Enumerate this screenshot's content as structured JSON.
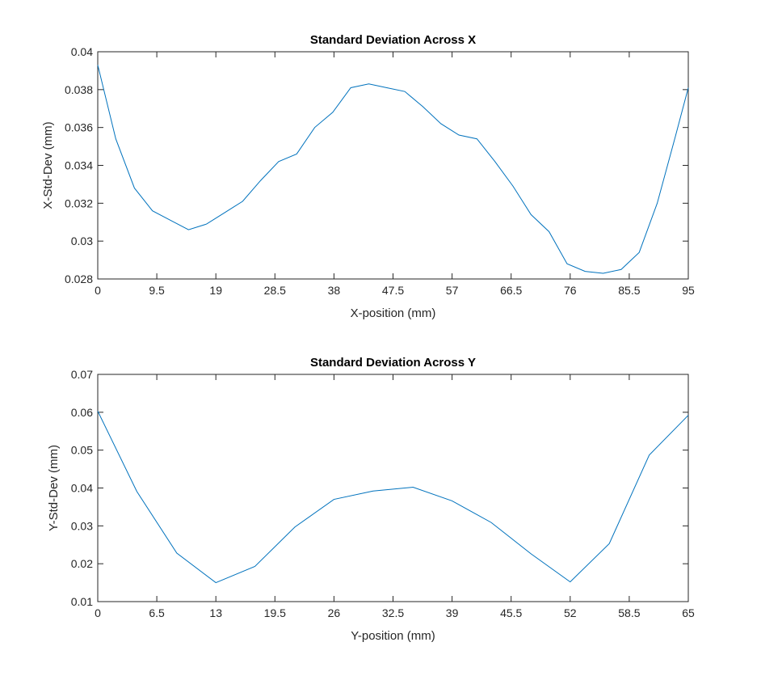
{
  "chart_data": [
    {
      "type": "line",
      "title": "Standard Deviation Across X",
      "xlabel": "X-position (mm)",
      "ylabel": "X-Std-Dev (mm)",
      "xlim": [
        0,
        95
      ],
      "ylim": [
        0.028,
        0.04
      ],
      "xticks": [
        0,
        9.5,
        19,
        28.5,
        38,
        47.5,
        57,
        66.5,
        76,
        85.5,
        95
      ],
      "xtick_labels": [
        "0",
        "9.5",
        "19",
        "28.5",
        "38",
        "47.5",
        "57",
        "66.5",
        "76",
        "85.5",
        "95"
      ],
      "yticks": [
        0.028,
        0.03,
        0.032,
        0.034,
        0.036,
        0.038,
        0.04
      ],
      "ytick_labels": [
        "0.028",
        "0.03",
        "0.032",
        "0.034",
        "0.036",
        "0.038",
        "0.04"
      ],
      "grid": false,
      "series": [
        {
          "color": "#0072BD",
          "x": [
            0,
            2.9,
            5.9,
            8.8,
            11.7,
            14.6,
            17.5,
            20.4,
            23.3,
            26.2,
            29.1,
            32.0,
            34.9,
            37.8,
            40.7,
            43.6,
            46.5,
            49.4,
            52.3,
            55.2,
            58.1,
            61.0,
            63.9,
            66.8,
            69.7,
            72.6,
            75.5,
            78.4,
            81.3,
            84.2,
            87.1,
            90.0,
            92.9,
            95
          ],
          "y": [
            0.0393,
            0.0354,
            0.0328,
            0.0316,
            0.0311,
            0.0306,
            0.0309,
            0.0315,
            0.0321,
            0.0332,
            0.0342,
            0.0346,
            0.036,
            0.0368,
            0.0381,
            0.0383,
            0.0381,
            0.0379,
            0.0371,
            0.0362,
            0.0356,
            0.0354,
            0.0342,
            0.0329,
            0.0314,
            0.0305,
            0.0288,
            0.0284,
            0.0283,
            0.0285,
            0.0294,
            0.032,
            0.0355,
            0.0381
          ]
        }
      ]
    },
    {
      "type": "line",
      "title": "Standard Deviation Across Y",
      "xlabel": "Y-position (mm)",
      "ylabel": "Y-Std-Dev (mm)",
      "xlim": [
        0,
        65
      ],
      "ylim": [
        0.01,
        0.07
      ],
      "xticks": [
        0,
        6.5,
        13,
        19.5,
        26,
        32.5,
        39,
        45.5,
        52,
        58.5,
        65
      ],
      "xtick_labels": [
        "0",
        "6.5",
        "13",
        "19.5",
        "26",
        "32.5",
        "39",
        "45.5",
        "52",
        "58.5",
        "65"
      ],
      "yticks": [
        0.01,
        0.02,
        0.03,
        0.04,
        0.05,
        0.06,
        0.07
      ],
      "ytick_labels": [
        "0.01",
        "0.02",
        "0.03",
        "0.04",
        "0.05",
        "0.06",
        "0.07"
      ],
      "grid": false,
      "series": [
        {
          "color": "#0072BD",
          "x": [
            0,
            4.3,
            8.7,
            13.0,
            17.3,
            21.7,
            26.0,
            30.3,
            34.7,
            39.0,
            43.3,
            47.7,
            52.0,
            56.3,
            60.7,
            65
          ],
          "y": [
            0.0603,
            0.0391,
            0.0228,
            0.015,
            0.0193,
            0.0297,
            0.037,
            0.0392,
            0.0402,
            0.0366,
            0.0309,
            0.0226,
            0.0152,
            0.0253,
            0.0487,
            0.0592
          ]
        }
      ]
    }
  ]
}
